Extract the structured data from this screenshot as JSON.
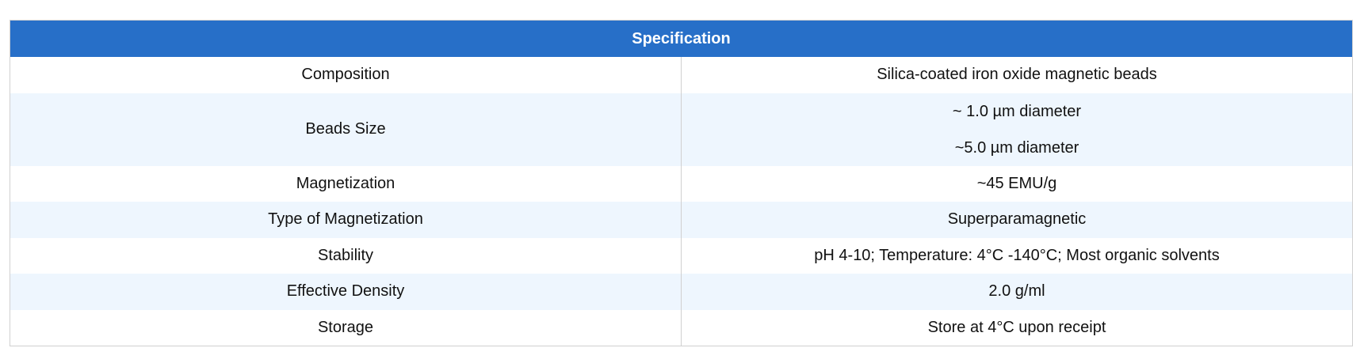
{
  "title": "Specification",
  "colors": {
    "header_bg": "#276fc8",
    "stripe": "#eef6fe"
  },
  "rows": [
    {
      "label": "Composition",
      "values": [
        "Silica-coated iron oxide magnetic beads"
      ]
    },
    {
      "label": "Beads Size",
      "values": [
        "~ 1.0 µm diameter",
        "~5.0 µm diameter"
      ]
    },
    {
      "label": "Magnetization",
      "values": [
        "~45 EMU/g"
      ]
    },
    {
      "label": "Type of Magnetization",
      "values": [
        "Superparamagnetic"
      ]
    },
    {
      "label": "Stability",
      "values": [
        "pH 4-10; Temperature: 4°C -140°C; Most organic solvents"
      ]
    },
    {
      "label": "Effective Density",
      "values": [
        "2.0 g/ml"
      ]
    },
    {
      "label": "Storage",
      "values": [
        "Store at 4°C upon receipt"
      ]
    }
  ]
}
